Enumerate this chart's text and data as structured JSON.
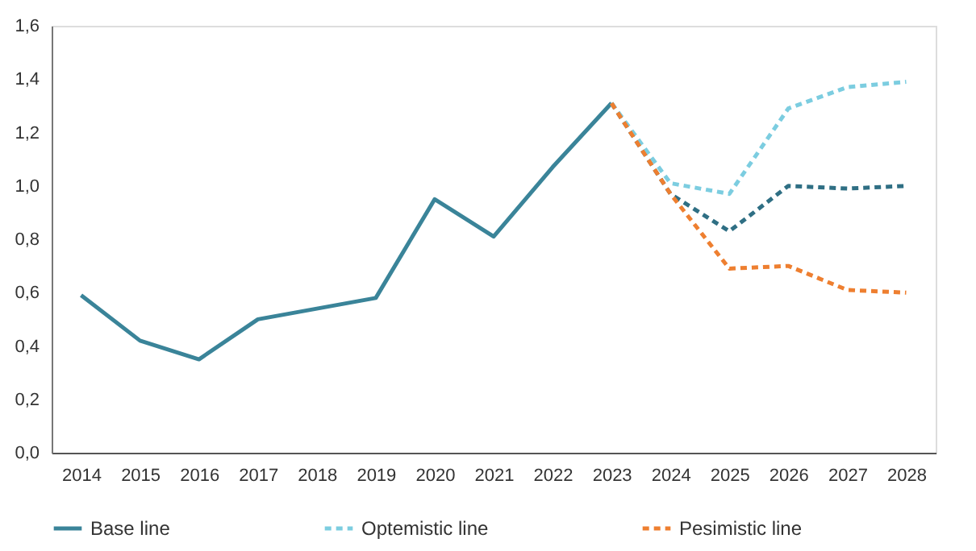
{
  "chart_data": {
    "type": "line",
    "categories": [
      "2014",
      "2015",
      "2016",
      "2017",
      "2018",
      "2019",
      "2020",
      "2021",
      "2022",
      "2023",
      "2024",
      "2025",
      "2026",
      "2027",
      "2028"
    ],
    "series": [
      {
        "name": "Base line",
        "color": "#3a8499",
        "line_style": "solid",
        "values": [
          0.59,
          0.42,
          0.35,
          0.5,
          0.54,
          0.58,
          0.95,
          0.81,
          1.07,
          1.31,
          null,
          null,
          null,
          null,
          null
        ]
      },
      {
        "color": "#2f6f84",
        "line_style": "dashed",
        "values": [
          null,
          null,
          null,
          null,
          null,
          null,
          null,
          null,
          null,
          1.31,
          0.97,
          0.83,
          1.0,
          0.99,
          1.0
        ]
      },
      {
        "name": "Optemistic line",
        "color": "#7ccde0",
        "line_style": "dashed",
        "values": [
          null,
          null,
          null,
          null,
          null,
          null,
          null,
          null,
          null,
          1.31,
          1.01,
          0.97,
          1.29,
          1.37,
          1.39
        ]
      },
      {
        "name": "Pesimistic line",
        "color": "#ee7f30",
        "line_style": "dashed",
        "values": [
          null,
          null,
          null,
          null,
          null,
          null,
          null,
          null,
          null,
          1.31,
          0.97,
          0.69,
          0.7,
          0.61,
          0.6
        ]
      }
    ],
    "ylim": [
      0,
      1.6
    ],
    "yticks": [
      {
        "value": 0,
        "label": "0,0"
      },
      {
        "value": 0.2,
        "label": "0,2"
      },
      {
        "value": 0.4,
        "label": "0,4"
      },
      {
        "value": 0.6,
        "label": "0,6"
      },
      {
        "value": 0.8,
        "label": "0,8"
      },
      {
        "value": 1.0,
        "label": "1,0"
      },
      {
        "value": 1.2,
        "label": "1,2"
      },
      {
        "value": 1.4,
        "label": "1,4"
      },
      {
        "value": 1.6,
        "label": "1,6"
      }
    ],
    "grid": false,
    "legend": "bottom",
    "marker": "none"
  }
}
